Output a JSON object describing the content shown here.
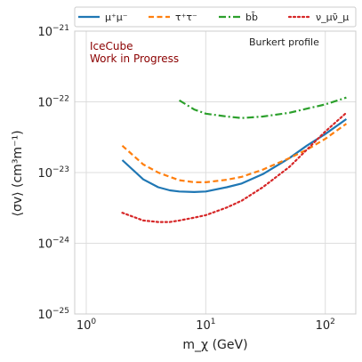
{
  "chart_data": {
    "type": "line",
    "xscale": "log",
    "yscale": "log",
    "xlim": [
      0.8,
      180
    ],
    "ylim": [
      1e-25,
      1e-21
    ],
    "xlabel": "m_χ (GeV)",
    "ylabel": "⟨σv⟩ (cm³m⁻¹)",
    "x_ticks": [
      {
        "value": 1,
        "label": "10",
        "exp": "0"
      },
      {
        "value": 10,
        "label": "10",
        "exp": "1"
      },
      {
        "value": 100,
        "label": "10",
        "exp": "2"
      }
    ],
    "y_ticks": [
      {
        "value": 1e-25,
        "label": "10",
        "exp": "−25"
      },
      {
        "value": 1e-24,
        "label": "10",
        "exp": "−24"
      },
      {
        "value": 1e-23,
        "label": "10",
        "exp": "−23"
      },
      {
        "value": 1e-22,
        "label": "10",
        "exp": "−22"
      },
      {
        "value": 1e-21,
        "label": "10",
        "exp": "−21"
      }
    ],
    "grid": true,
    "legend_position": "top, above plot",
    "annotations": {
      "watermark_line1": "IceCube",
      "watermark_line2": "Work in Progress",
      "profile": "Burkert profile"
    },
    "series": [
      {
        "name": "μ⁺μ⁻",
        "color": "#1f77b4",
        "dash": "solid",
        "x": [
          2,
          3,
          4,
          5,
          6,
          8,
          10,
          15,
          20,
          30,
          50,
          70,
          100,
          150
        ],
        "y": [
          1.5e-23,
          8e-24,
          6.2e-24,
          5.6e-24,
          5.4e-24,
          5.3e-24,
          5.4e-24,
          6.2e-24,
          7e-24,
          9.5e-24,
          1.6e-23,
          2.4e-23,
          3.5e-23,
          5.7e-23
        ]
      },
      {
        "name": "τ⁺τ⁻",
        "color": "#ff7f0e",
        "dash": "dashed",
        "x": [
          2,
          3,
          4,
          5,
          6,
          8,
          10,
          15,
          20,
          30,
          50,
          70,
          100,
          150
        ],
        "y": [
          2.4e-23,
          1.3e-23,
          1e-23,
          8.7e-24,
          7.8e-24,
          7.3e-24,
          7.3e-24,
          7.9e-24,
          8.7e-24,
          1.1e-23,
          1.6e-23,
          2.1e-23,
          3e-23,
          4.9e-23
        ]
      },
      {
        "name": "bb̄",
        "color": "#2ca02c",
        "dash": "dashdot",
        "x": [
          6,
          8,
          10,
          15,
          20,
          30,
          50,
          70,
          100,
          150
        ],
        "y": [
          1.05e-22,
          7.8e-23,
          6.8e-23,
          6.2e-23,
          5.9e-23,
          6.2e-23,
          7e-23,
          8e-23,
          9.2e-23,
          1.15e-22
        ]
      },
      {
        "name": "ν_μν̄_μ",
        "color": "#d62728",
        "dash": "dotted",
        "x": [
          2,
          3,
          4,
          5,
          6,
          8,
          10,
          15,
          20,
          30,
          50,
          70,
          100,
          150
        ],
        "y": [
          2.7e-24,
          2.1e-24,
          2e-24,
          2e-24,
          2.1e-24,
          2.3e-24,
          2.5e-24,
          3.2e-24,
          4e-24,
          6.2e-24,
          1.2e-23,
          2.1e-23,
          3.8e-23,
          7e-23
        ]
      }
    ],
    "colors": {
      "watermark": "#8b0000",
      "grid": "#dddddd",
      "frame": "#cccccc"
    }
  }
}
